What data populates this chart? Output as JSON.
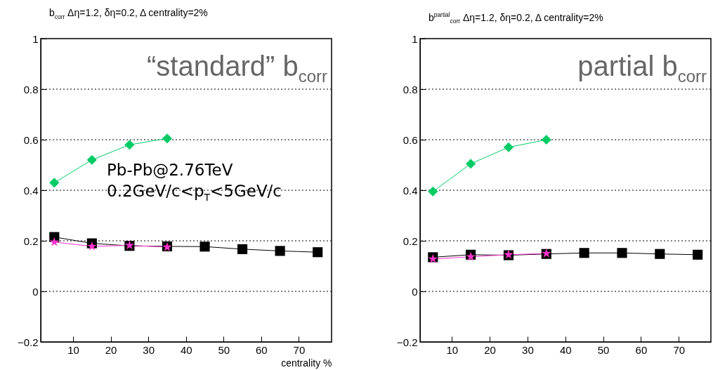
{
  "chart_data": [
    {
      "type": "line",
      "title": "b$_{corr}$ Δη=1.2, δη=0.2, Δ centrality=2%",
      "xlabel": "centrality %",
      "x": [
        5,
        15,
        25,
        35,
        45,
        55,
        65,
        75
      ],
      "series": [
        {
          "color": "#000000",
          "marker": "square",
          "values": [
            0.215,
            0.19,
            0.18,
            0.178,
            0.177,
            0.167,
            0.16,
            0.155
          ]
        },
        {
          "color": "#ff33cc",
          "marker": "star",
          "x": [
            5,
            15,
            25,
            35
          ],
          "values": [
            0.195,
            0.178,
            0.182,
            0.175
          ]
        },
        {
          "color": "#00cc66",
          "marker": "diamond",
          "x": [
            5,
            15,
            25,
            35
          ],
          "values": [
            0.43,
            0.52,
            0.58,
            0.605
          ]
        }
      ],
      "xlim": [
        1.4,
        78.7
      ],
      "ylim": [
        -0.2,
        1
      ],
      "xticks": [
        10,
        20,
        30,
        40,
        50,
        60,
        70
      ],
      "yticks": [
        -0.2,
        0,
        0.2,
        0.4,
        0.6,
        0.8,
        1
      ],
      "grid": "y",
      "annotations": [
        "“standard” b$_{corr}$",
        "Pb-Pb@2.76TeV",
        "0.2GeV/c<p$_{T}$<5GeV/c"
      ]
    },
    {
      "type": "line",
      "title": "b$^{partial}$$_{corr}$ Δη=1.2, δη=0.2, Δ centrality=2%",
      "x": [
        5,
        15,
        25,
        35,
        45,
        55,
        65,
        75
      ],
      "series": [
        {
          "color": "#000000",
          "marker": "square",
          "values": [
            0.135,
            0.145,
            0.143,
            0.148,
            0.152,
            0.152,
            0.148,
            0.145
          ]
        },
        {
          "color": "#ff33cc",
          "marker": "star",
          "x": [
            5,
            15,
            25,
            35
          ],
          "values": [
            0.128,
            0.137,
            0.145,
            0.15
          ]
        },
        {
          "color": "#00cc66",
          "marker": "diamond",
          "x": [
            5,
            15,
            25,
            35
          ],
          "values": [
            0.395,
            0.505,
            0.57,
            0.6
          ]
        }
      ],
      "xlim": [
        1.6,
        78.5
      ],
      "ylim": [
        -0.2,
        1
      ],
      "xticks": [
        10,
        20,
        30,
        40,
        50,
        60,
        70
      ],
      "yticks": [
        -0.2,
        0,
        0.2,
        0.4,
        0.6,
        0.8,
        1
      ],
      "grid": "y",
      "annotations": [
        "partial b$_{corr}$"
      ]
    }
  ]
}
